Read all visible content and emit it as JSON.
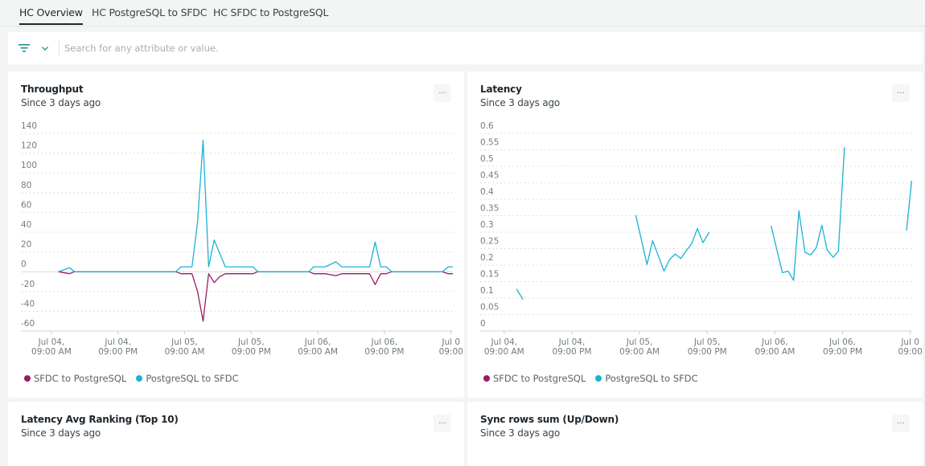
{
  "tabs": [
    {
      "label": "HC Overview",
      "active": true
    },
    {
      "label": "HC PostgreSQL to SFDC",
      "active": false
    },
    {
      "label": "HC SFDC to PostgreSQL",
      "active": false
    }
  ],
  "search": {
    "placeholder": "Search for any attribute or value.",
    "value": ""
  },
  "icons": {
    "filter": "filter-icon",
    "chevron": "chevron-down-icon",
    "more": "more-horizontal-icon"
  },
  "colors": {
    "sfdc_to_postgresql": "#9b1a6b",
    "postgresql_to_sfdc": "#1bb2d6",
    "accent": "#0c8189"
  },
  "cards": [
    {
      "title": "Throughput",
      "subtitle": "Since 3 days ago",
      "more": "..."
    },
    {
      "title": "Latency",
      "subtitle": "Since 3 days ago",
      "more": "..."
    },
    {
      "title": "Latency Avg Ranking (Top 10)",
      "subtitle": "Since 3 days ago",
      "more": "..."
    },
    {
      "title": "Sync rows sum (Up/Down)",
      "subtitle": "Since 3 days ago",
      "more": "..."
    }
  ],
  "chart_data": [
    {
      "type": "line",
      "title": "Throughput",
      "ylim": [
        -60,
        140
      ],
      "yticks": [
        "140",
        "120",
        "100",
        "80",
        "60",
        "40",
        "20",
        "0",
        "-20",
        "-40",
        "-60"
      ],
      "xlim": [
        "Jul 04 03:30",
        "Jul 07 09:20"
      ],
      "xticks": [
        {
          "at": "Jul 04 09:00",
          "l1": "Jul 04,",
          "l2": "09:00 AM"
        },
        {
          "at": "Jul 04 21:00",
          "l1": "Jul 04,",
          "l2": "09:00 PM"
        },
        {
          "at": "Jul 05 09:00",
          "l1": "Jul 05,",
          "l2": "09:00 AM"
        },
        {
          "at": "Jul 05 21:00",
          "l1": "Jul 05,",
          "l2": "09:00 PM"
        },
        {
          "at": "Jul 06 09:00",
          "l1": "Jul 06,",
          "l2": "09:00 AM"
        },
        {
          "at": "Jul 06 21:00",
          "l1": "Jul 06,",
          "l2": "09:00 PM"
        },
        {
          "at": "Jul 07 09:00",
          "l1": "Jul 0",
          "l2": "09:00"
        }
      ],
      "grid": true,
      "legend": "bottom-left",
      "series": [
        {
          "name": "SFDC to PostgreSQL",
          "color": "#9b1a6b",
          "segments": [
            [
              [
                "Jul 04 10:15",
                0
              ],
              [
                "Jul 04 12:15",
                -2
              ],
              [
                "Jul 04 13:10",
                0
              ],
              [
                "Jul 05 07:25",
                0
              ],
              [
                "Jul 05 08:20",
                -2
              ],
              [
                "Jul 05 10:20",
                -2
              ],
              [
                "Jul 05 11:20",
                -20
              ],
              [
                "Jul 05 12:20",
                -50
              ],
              [
                "Jul 05 13:20",
                -2
              ],
              [
                "Jul 05 14:20",
                -11
              ],
              [
                "Jul 05 15:20",
                -5
              ],
              [
                "Jul 05 16:20",
                -2
              ],
              [
                "Jul 05 21:20",
                -2
              ],
              [
                "Jul 05 22:10",
                0
              ],
              [
                "Jul 06 07:25",
                0
              ],
              [
                "Jul 06 08:15",
                -2
              ],
              [
                "Jul 06 10:20",
                -2
              ],
              [
                "Jul 06 12:15",
                -4
              ],
              [
                "Jul 06 13:20",
                -2
              ],
              [
                "Jul 06 18:20",
                -2
              ],
              [
                "Jul 06 19:20",
                -13
              ],
              [
                "Jul 06 20:20",
                -2
              ],
              [
                "Jul 06 21:20",
                -2
              ],
              [
                "Jul 06 22:20",
                0
              ],
              [
                "Jul 07 07:25",
                0
              ],
              [
                "Jul 07 08:30",
                -2
              ],
              [
                "Jul 07 09:20",
                -2
              ]
            ]
          ]
        },
        {
          "name": "PostgreSQL to SFDC",
          "color": "#1bb2d6",
          "segments": [
            [
              [
                "Jul 04 10:15",
                0
              ],
              [
                "Jul 04 12:15",
                4
              ],
              [
                "Jul 04 13:10",
                0
              ],
              [
                "Jul 05 07:25",
                0
              ],
              [
                "Jul 05 08:20",
                5
              ],
              [
                "Jul 05 10:20",
                5
              ],
              [
                "Jul 05 11:20",
                50
              ],
              [
                "Jul 05 12:20",
                133
              ],
              [
                "Jul 05 13:20",
                5
              ],
              [
                "Jul 05 14:20",
                32
              ],
              [
                "Jul 05 16:20",
                5
              ],
              [
                "Jul 05 21:20",
                5
              ],
              [
                "Jul 05 22:10",
                0
              ],
              [
                "Jul 06 07:25",
                0
              ],
              [
                "Jul 06 08:15",
                5
              ],
              [
                "Jul 06 10:20",
                5
              ],
              [
                "Jul 06 12:15",
                10
              ],
              [
                "Jul 06 13:20",
                5
              ],
              [
                "Jul 06 18:20",
                5
              ],
              [
                "Jul 06 19:20",
                30
              ],
              [
                "Jul 06 20:20",
                5
              ],
              [
                "Jul 06 21:20",
                5
              ],
              [
                "Jul 06 22:20",
                0
              ],
              [
                "Jul 07 07:25",
                0
              ],
              [
                "Jul 07 08:30",
                5
              ],
              [
                "Jul 07 09:20",
                5
              ]
            ]
          ]
        }
      ]
    },
    {
      "type": "line",
      "title": "Latency",
      "ylim": [
        0,
        0.6
      ],
      "yticks": [
        "0.6",
        "0.55",
        "0.5",
        "0.45",
        "0.4",
        "0.35",
        "0.3",
        "0.25",
        "0.2",
        "0.15",
        "0.1",
        "0.05",
        "0"
      ],
      "xlim": [
        "Jul 04 04:45",
        "Jul 07 09:20"
      ],
      "xticks": [
        {
          "at": "Jul 04 09:00",
          "l1": "Jul 04,",
          "l2": "09:00 AM"
        },
        {
          "at": "Jul 04 21:00",
          "l1": "Jul 04,",
          "l2": "09:00 PM"
        },
        {
          "at": "Jul 05 09:00",
          "l1": "Jul 05,",
          "l2": "09:00 AM"
        },
        {
          "at": "Jul 05 21:00",
          "l1": "Jul 05,",
          "l2": "09:00 PM"
        },
        {
          "at": "Jul 06 09:00",
          "l1": "Jul 06,",
          "l2": "09:00 AM"
        },
        {
          "at": "Jul 06 21:00",
          "l1": "Jul 06,",
          "l2": "09:00 PM"
        },
        {
          "at": "Jul 07 09:00",
          "l1": "Jul 0",
          "l2": "09:00"
        }
      ],
      "grid": true,
      "legend": "bottom-left",
      "series": [
        {
          "name": "SFDC to PostgreSQL",
          "color": "#9b1a6b",
          "segments": []
        },
        {
          "name": "PostgreSQL to SFDC",
          "color": "#1bb2d6",
          "segments": [
            [
              [
                "Jul 04 11:10",
                0.128
              ],
              [
                "Jul 04 12:20",
                0.096
              ]
            ],
            [
              [
                "Jul 05 08:20",
                0.352
              ],
              [
                "Jul 05 10:20",
                0.202
              ],
              [
                "Jul 05 11:20",
                0.274
              ],
              [
                "Jul 05 12:15",
                0.232
              ],
              [
                "Jul 05 13:20",
                0.182
              ],
              [
                "Jul 05 14:20",
                0.217
              ],
              [
                "Jul 05 15:20",
                0.234
              ],
              [
                "Jul 05 16:20",
                0.22
              ],
              [
                "Jul 05 17:15",
                0.243
              ],
              [
                "Jul 05 18:15",
                0.265
              ],
              [
                "Jul 05 19:15",
                0.311
              ],
              [
                "Jul 05 20:15",
                0.268
              ],
              [
                "Jul 05 21:20",
                0.3
              ]
            ],
            [
              [
                "Jul 06 08:20",
                0.319
              ],
              [
                "Jul 06 09:20",
                0.248
              ],
              [
                "Jul 06 10:20",
                0.177
              ],
              [
                "Jul 06 11:20",
                0.182
              ],
              [
                "Jul 06 12:20",
                0.154
              ],
              [
                "Jul 06 13:15",
                0.365
              ],
              [
                "Jul 06 14:20",
                0.239
              ],
              [
                "Jul 06 15:20",
                0.231
              ],
              [
                "Jul 06 16:20",
                0.253
              ],
              [
                "Jul 06 17:20",
                0.321
              ],
              [
                "Jul 06 18:15",
                0.247
              ],
              [
                "Jul 06 19:20",
                0.224
              ],
              [
                "Jul 06 20:15",
                0.243
              ],
              [
                "Jul 06 21:20",
                0.558
              ]
            ],
            [
              [
                "Jul 07 08:20",
                0.305
              ],
              [
                "Jul 07 09:15",
                0.456
              ]
            ]
          ]
        }
      ]
    }
  ]
}
